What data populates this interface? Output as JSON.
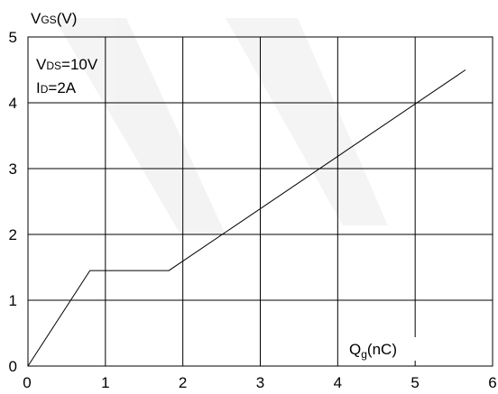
{
  "chart_data": {
    "type": "line",
    "ylabel_main": "V",
    "ylabel_sub": "GS",
    "ylabel_unit": "(V)",
    "xlabel_main": "Q",
    "xlabel_sub": "g",
    "xlabel_unit": "(nC)",
    "xlim": [
      0,
      6
    ],
    "ylim": [
      0,
      5
    ],
    "xticks": [
      0,
      1,
      2,
      3,
      4,
      5,
      6
    ],
    "yticks": [
      0,
      1,
      2,
      3,
      4,
      5
    ],
    "grid": true,
    "annotations": [
      {
        "main": "V",
        "sub": "DS",
        "rest": "=10V"
      },
      {
        "main": "I",
        "sub": "D",
        "rest": "=2A"
      }
    ],
    "series": [
      {
        "x": [
          0,
          0.8,
          1.82,
          5.65
        ],
        "y": [
          0,
          1.45,
          1.45,
          4.5
        ]
      }
    ]
  }
}
